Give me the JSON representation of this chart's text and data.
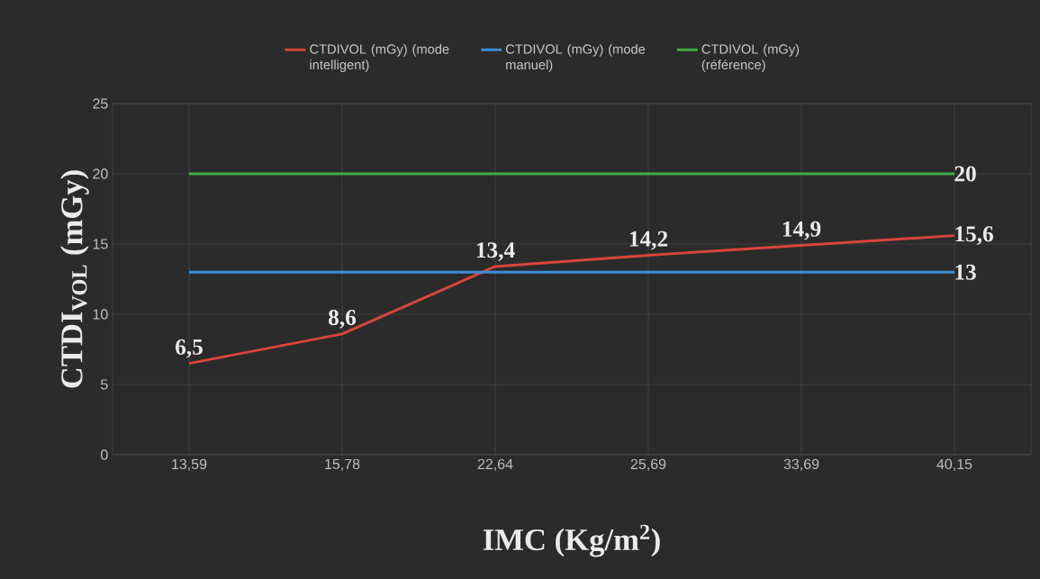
{
  "chart_data": {
    "type": "line",
    "xlabel": "IMC (Kg/m$^{2}$)",
    "ylabel": "CTDI$_{VOL}$ (mGy)",
    "categories": [
      "13,59",
      "15,78",
      "22,64",
      "25,69",
      "33,69",
      "40,15"
    ],
    "series": [
      {
        "name": "CTDIVOL (mGy) (mode intelligent)",
        "color": "#d9453b",
        "values": [
          6.5,
          8.6,
          13.4,
          14.2,
          14.9,
          15.6
        ],
        "value_labels": [
          "6,5",
          "8,6",
          "13,4",
          "14,2",
          "14,9",
          "15,6"
        ]
      },
      {
        "name": "CTDIVOL (mGy) (mode manuel)",
        "color": "#3b8fdb",
        "values": [
          13,
          13,
          13,
          13,
          13,
          13
        ],
        "value_labels": [
          null,
          null,
          null,
          null,
          null,
          "13"
        ]
      },
      {
        "name": "CTDIVOL (mGy) (référence)",
        "color": "#3fb045",
        "values": [
          20,
          20,
          20,
          20,
          20,
          20
        ],
        "value_labels": [
          null,
          null,
          null,
          null,
          null,
          "20"
        ]
      }
    ],
    "ylim": [
      0,
      25
    ],
    "yticks": [
      0,
      5,
      10,
      15,
      20,
      25
    ],
    "grid": true,
    "legend": "top"
  }
}
